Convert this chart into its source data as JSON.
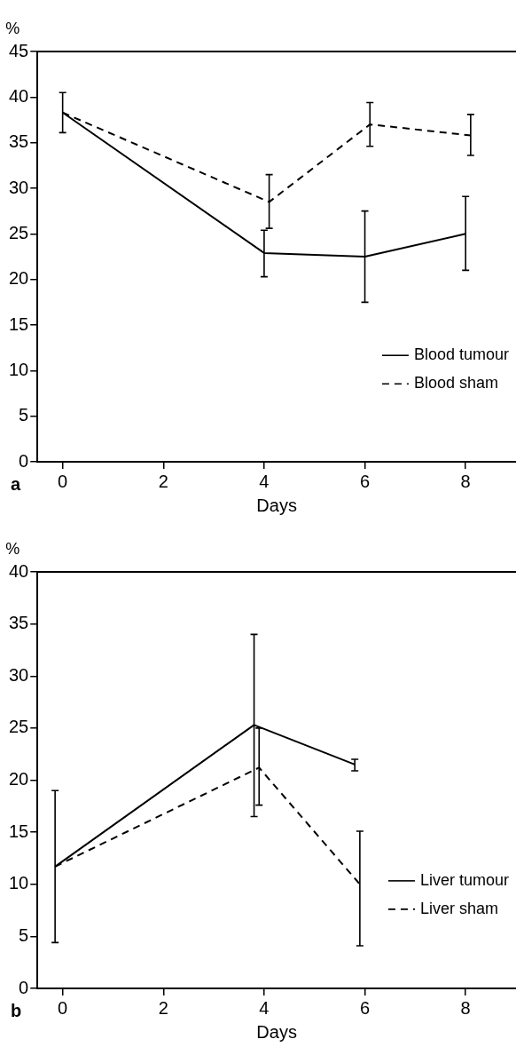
{
  "chart_data": [
    {
      "type": "line",
      "xlabel": "Days",
      "ylabel": "%",
      "annotations": [
        "a"
      ],
      "xlim": [
        -0.5,
        9
      ],
      "xticks": [
        0,
        2,
        4,
        6,
        8
      ],
      "ylim": [
        0,
        45
      ],
      "yticks": [
        0,
        5,
        10,
        15,
        20,
        25,
        30,
        35,
        40,
        45
      ],
      "grid": false,
      "legend": "bottom right",
      "marker": "none",
      "series": [
        {
          "name": "Blood tumour",
          "color": "#000000",
          "line_style": "solid",
          "x": [
            0,
            4,
            6,
            8
          ],
          "values": [
            38.3,
            22.9,
            22.5,
            25
          ],
          "errors": [
            [
              36.1,
              40.5
            ],
            [
              20.3,
              25.4
            ],
            [
              17.5,
              27.5
            ],
            [
              21,
              29.1
            ]
          ]
        },
        {
          "name": "Blood sham",
          "color": "#000000",
          "line_style": "dashed",
          "x": [
            0,
            4.1,
            6.1,
            8.1
          ],
          "values": [
            38.3,
            28.5,
            37,
            35.8
          ],
          "errors": [
            null,
            [
              25.6,
              31.5
            ],
            [
              34.6,
              39.4
            ],
            [
              33.6,
              38.1
            ]
          ]
        }
      ]
    },
    {
      "type": "line",
      "xlabel": "Days",
      "ylabel": "%",
      "annotations": [
        "b"
      ],
      "xlim": [
        -0.5,
        9
      ],
      "xticks": [
        0,
        2,
        4,
        6,
        8
      ],
      "ylim": [
        0,
        40
      ],
      "yticks": [
        0,
        5,
        10,
        15,
        20,
        25,
        30,
        35,
        40
      ],
      "grid": false,
      "legend": "bottom right",
      "marker": "none",
      "series": [
        {
          "name": "Liver tumour",
          "color": "#000000",
          "line_style": "solid",
          "x": [
            -0.15,
            3.8,
            5.8
          ],
          "values": [
            11.7,
            25.3,
            21.5
          ],
          "errors": [
            [
              4.4,
              19
            ],
            [
              16.5,
              34
            ],
            [
              20.9,
              22
            ]
          ]
        },
        {
          "name": "Liver sham",
          "color": "#000000",
          "line_style": "dashed",
          "x": [
            -0.15,
            3.9,
            5.9
          ],
          "values": [
            11.7,
            21.2,
            10
          ],
          "errors": [
            null,
            [
              17.6,
              25
            ],
            [
              4.1,
              15.1
            ]
          ]
        }
      ]
    }
  ]
}
